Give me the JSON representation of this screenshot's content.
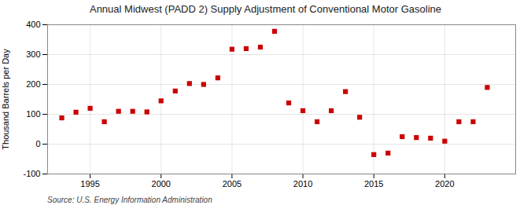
{
  "chart_data": {
    "type": "scatter",
    "title": "Annual Midwest (PADD 2) Supply Adjustment of Conventional Motor Gasoline",
    "ylabel": "Thousand Barrels per Day",
    "annotation": "Source: U.S. Energy Information Administration",
    "x": [
      1993,
      1994,
      1995,
      1996,
      1997,
      1998,
      1999,
      2000,
      2001,
      2002,
      2003,
      2004,
      2005,
      2006,
      2007,
      2008,
      2009,
      2010,
      2011,
      2012,
      2013,
      2014,
      2015,
      2016,
      2017,
      2018,
      2019,
      2020,
      2021,
      2022,
      2023
    ],
    "values": [
      88,
      107,
      120,
      75,
      110,
      110,
      108,
      145,
      178,
      203,
      200,
      222,
      318,
      320,
      325,
      378,
      138,
      112,
      75,
      112,
      176,
      90,
      -35,
      -30,
      25,
      22,
      20,
      10,
      75,
      75,
      190
    ],
    "color": "#cc0000",
    "marker": "square",
    "xlim": [
      1992,
      2025
    ],
    "ylim": [
      -100,
      400
    ],
    "xticks": [
      1995,
      2000,
      2005,
      2010,
      2015,
      2020
    ],
    "yticks": [
      -100,
      0,
      100,
      200,
      300,
      400
    ],
    "grid": true
  }
}
